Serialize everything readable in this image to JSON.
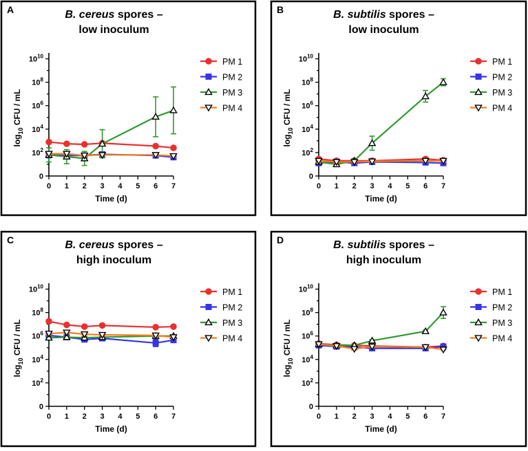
{
  "colors": {
    "PM 1": "#e8312f",
    "PM 2": "#3535e6",
    "PM 3": "#2e9a2e",
    "PM 4": "#f07f1e"
  },
  "chart_data": [
    {
      "panel": "A",
      "type": "line",
      "title_italic": "B. cereus",
      "title_rest": " spores –",
      "title_line2": "low inoculum",
      "xlabel": "Time (d)",
      "ylabel_parts": [
        "log",
        "10",
        " CFU / mL"
      ],
      "x_ticks": [
        "0",
        "1",
        "2",
        "3",
        "4",
        "5",
        "6",
        "7"
      ],
      "y_ticks": [
        {
          "v": 0,
          "label": "0",
          "sup": ""
        },
        {
          "v": 2,
          "label": "10",
          "sup": "2"
        },
        {
          "v": 4,
          "label": "10",
          "sup": "4"
        },
        {
          "v": 6,
          "label": "10",
          "sup": "6"
        },
        {
          "v": 8,
          "label": "10",
          "sup": "8"
        },
        {
          "v": 10,
          "label": "10",
          "sup": "10"
        }
      ],
      "xlim": [
        0,
        7
      ],
      "ylim": [
        0,
        10.5
      ],
      "series": [
        {
          "name": "PM 1",
          "marker": "circle",
          "x": [
            0,
            1,
            2,
            3,
            6,
            7
          ],
          "y": [
            2.9,
            2.75,
            2.7,
            2.8,
            2.55,
            2.4
          ],
          "err": [
            0.1,
            0.1,
            0.1,
            0.1,
            0.1,
            0.1
          ]
        },
        {
          "name": "PM 2",
          "marker": "square",
          "x": [
            0,
            1,
            2,
            3,
            6,
            7
          ],
          "y": [
            1.8,
            1.75,
            1.75,
            1.85,
            1.75,
            1.6
          ],
          "err": [
            0.25,
            0.2,
            0.2,
            0.2,
            0.2,
            0.2
          ]
        },
        {
          "name": "PM 3",
          "marker": "triangle-up",
          "x": [
            0,
            1,
            2,
            3,
            6,
            7
          ],
          "y": [
            1.8,
            1.65,
            1.5,
            2.75,
            5.05,
            5.6
          ],
          "err": [
            0.6,
            0.6,
            0.6,
            1.2,
            1.7,
            2.0
          ]
        },
        {
          "name": "PM 4",
          "marker": "triangle-down",
          "x": [
            0,
            1,
            2,
            3,
            6,
            7
          ],
          "y": [
            1.9,
            1.9,
            1.75,
            1.8,
            1.8,
            1.7
          ],
          "err": [
            0.1,
            0.1,
            0.1,
            0.1,
            0.1,
            0.1
          ]
        }
      ]
    },
    {
      "panel": "B",
      "type": "line",
      "title_italic": "B. subtilis",
      "title_rest": " spores –",
      "title_line2": "low inoculum",
      "xlabel": "Time (d)",
      "ylabel_parts": [
        "log",
        "10",
        " CFU / mL"
      ],
      "x_ticks": [
        "0",
        "1",
        "2",
        "3",
        "4",
        "5",
        "6",
        "7"
      ],
      "y_ticks": [
        {
          "v": 0,
          "label": "0",
          "sup": ""
        },
        {
          "v": 2,
          "label": "10",
          "sup": "2"
        },
        {
          "v": 4,
          "label": "10",
          "sup": "4"
        },
        {
          "v": 6,
          "label": "10",
          "sup": "6"
        },
        {
          "v": 8,
          "label": "10",
          "sup": "8"
        },
        {
          "v": 10,
          "label": "10",
          "sup": "10"
        }
      ],
      "xlim": [
        0,
        7
      ],
      "ylim": [
        0,
        10.5
      ],
      "series": [
        {
          "name": "PM 1",
          "marker": "circle",
          "x": [
            0,
            1,
            2,
            3,
            6,
            7
          ],
          "y": [
            1.45,
            1.3,
            1.3,
            1.3,
            1.45,
            1.35
          ],
          "err": [
            0.1,
            0.1,
            0.1,
            0.1,
            0.1,
            0.1
          ]
        },
        {
          "name": "PM 2",
          "marker": "square",
          "x": [
            0,
            1,
            2,
            3,
            6,
            7
          ],
          "y": [
            1.1,
            1.2,
            1.1,
            1.2,
            1.15,
            1.1
          ],
          "err": [
            0.15,
            0.15,
            0.15,
            0.15,
            0.15,
            0.15
          ]
        },
        {
          "name": "PM 3",
          "marker": "triangle-up",
          "x": [
            0,
            1,
            2,
            3,
            6,
            7
          ],
          "y": [
            1.2,
            1.0,
            1.3,
            2.8,
            6.8,
            8.0
          ],
          "err": [
            0.2,
            0.2,
            0.2,
            0.6,
            0.5,
            0.3
          ]
        },
        {
          "name": "PM 4",
          "marker": "triangle-down",
          "x": [
            0,
            1,
            2,
            3,
            6,
            7
          ],
          "y": [
            1.3,
            1.2,
            1.2,
            1.25,
            1.3,
            1.3
          ],
          "err": [
            0.1,
            0.1,
            0.1,
            0.1,
            0.1,
            0.1
          ]
        }
      ]
    },
    {
      "panel": "C",
      "type": "line",
      "title_italic": "B. cereus",
      "title_rest": " spores –",
      "title_line2": "high inoculum",
      "xlabel": "Time (d)",
      "ylabel_parts": [
        "log",
        "10",
        " CFU / mL"
      ],
      "x_ticks": [
        "0",
        "1",
        "2",
        "3",
        "4",
        "5",
        "6",
        "7"
      ],
      "y_ticks": [
        {
          "v": 0,
          "label": "0",
          "sup": ""
        },
        {
          "v": 2,
          "label": "10",
          "sup": "2"
        },
        {
          "v": 4,
          "label": "10",
          "sup": "4"
        },
        {
          "v": 6,
          "label": "10",
          "sup": "6"
        },
        {
          "v": 8,
          "label": "10",
          "sup": "8"
        },
        {
          "v": 10,
          "label": "10",
          "sup": "10"
        }
      ],
      "xlim": [
        0,
        7
      ],
      "ylim": [
        0,
        10.5
      ],
      "series": [
        {
          "name": "PM 1",
          "marker": "circle",
          "x": [
            0,
            1,
            2,
            3,
            6,
            7
          ],
          "y": [
            7.25,
            6.95,
            6.8,
            6.9,
            6.75,
            6.8
          ],
          "err": [
            0.15,
            0.1,
            0.1,
            0.1,
            0.1,
            0.1
          ]
        },
        {
          "name": "PM 2",
          "marker": "square",
          "x": [
            0,
            1,
            2,
            3,
            6,
            7
          ],
          "y": [
            6.05,
            5.9,
            5.7,
            5.8,
            5.4,
            5.65
          ],
          "err": [
            0.2,
            0.2,
            0.2,
            0.2,
            0.3,
            0.2
          ]
        },
        {
          "name": "PM 3",
          "marker": "triangle-up",
          "x": [
            0,
            1,
            2,
            3,
            6,
            7
          ],
          "y": [
            5.85,
            5.9,
            5.85,
            5.9,
            6.0,
            6.0
          ],
          "err": [
            0.1,
            0.1,
            0.1,
            0.1,
            0.1,
            0.1
          ]
        },
        {
          "name": "PM 4",
          "marker": "triangle-down",
          "x": [
            0,
            1,
            2,
            3,
            6,
            7
          ],
          "y": [
            6.2,
            6.3,
            6.15,
            6.1,
            6.05,
            5.9
          ],
          "err": [
            0.1,
            0.1,
            0.1,
            0.1,
            0.1,
            0.1
          ]
        }
      ]
    },
    {
      "panel": "D",
      "type": "line",
      "title_italic": "B. subtilis",
      "title_rest": " spores –",
      "title_line2": "high inoculum",
      "xlabel": "Time (d)",
      "ylabel_parts": [
        "log",
        "10",
        " CFU / mL"
      ],
      "x_ticks": [
        "0",
        "1",
        "2",
        "3",
        "4",
        "5",
        "6",
        "7"
      ],
      "y_ticks": [
        {
          "v": 0,
          "label": "0",
          "sup": ""
        },
        {
          "v": 2,
          "label": "10",
          "sup": "2"
        },
        {
          "v": 4,
          "label": "10",
          "sup": "4"
        },
        {
          "v": 6,
          "label": "10",
          "sup": "6"
        },
        {
          "v": 8,
          "label": "10",
          "sup": "8"
        },
        {
          "v": 10,
          "label": "10",
          "sup": "10"
        }
      ],
      "xlim": [
        0,
        7
      ],
      "ylim": [
        0,
        10.5
      ],
      "series": [
        {
          "name": "PM 1",
          "marker": "circle",
          "x": [
            0,
            1,
            2,
            3,
            6,
            7
          ],
          "y": [
            5.35,
            5.25,
            5.2,
            5.15,
            5.05,
            5.15
          ],
          "err": [
            0.1,
            0.1,
            0.1,
            0.1,
            0.1,
            0.1
          ]
        },
        {
          "name": "PM 2",
          "marker": "square",
          "x": [
            0,
            1,
            2,
            3,
            6,
            7
          ],
          "y": [
            5.2,
            5.1,
            5.05,
            4.95,
            4.95,
            5.1
          ],
          "err": [
            0.1,
            0.1,
            0.1,
            0.1,
            0.1,
            0.1
          ]
        },
        {
          "name": "PM 3",
          "marker": "triangle-up",
          "x": [
            0,
            1,
            2,
            3,
            6,
            7
          ],
          "y": [
            5.3,
            5.2,
            5.2,
            5.6,
            6.4,
            8.0
          ],
          "err": [
            0.1,
            0.1,
            0.1,
            0.1,
            0.1,
            0.5
          ]
        },
        {
          "name": "PM 4",
          "marker": "triangle-down",
          "x": [
            0,
            1,
            2,
            3,
            6,
            7
          ],
          "y": [
            5.3,
            5.15,
            4.9,
            5.1,
            5.05,
            4.85
          ],
          "err": [
            0.1,
            0.1,
            0.1,
            0.1,
            0.1,
            0.1
          ]
        }
      ]
    }
  ]
}
